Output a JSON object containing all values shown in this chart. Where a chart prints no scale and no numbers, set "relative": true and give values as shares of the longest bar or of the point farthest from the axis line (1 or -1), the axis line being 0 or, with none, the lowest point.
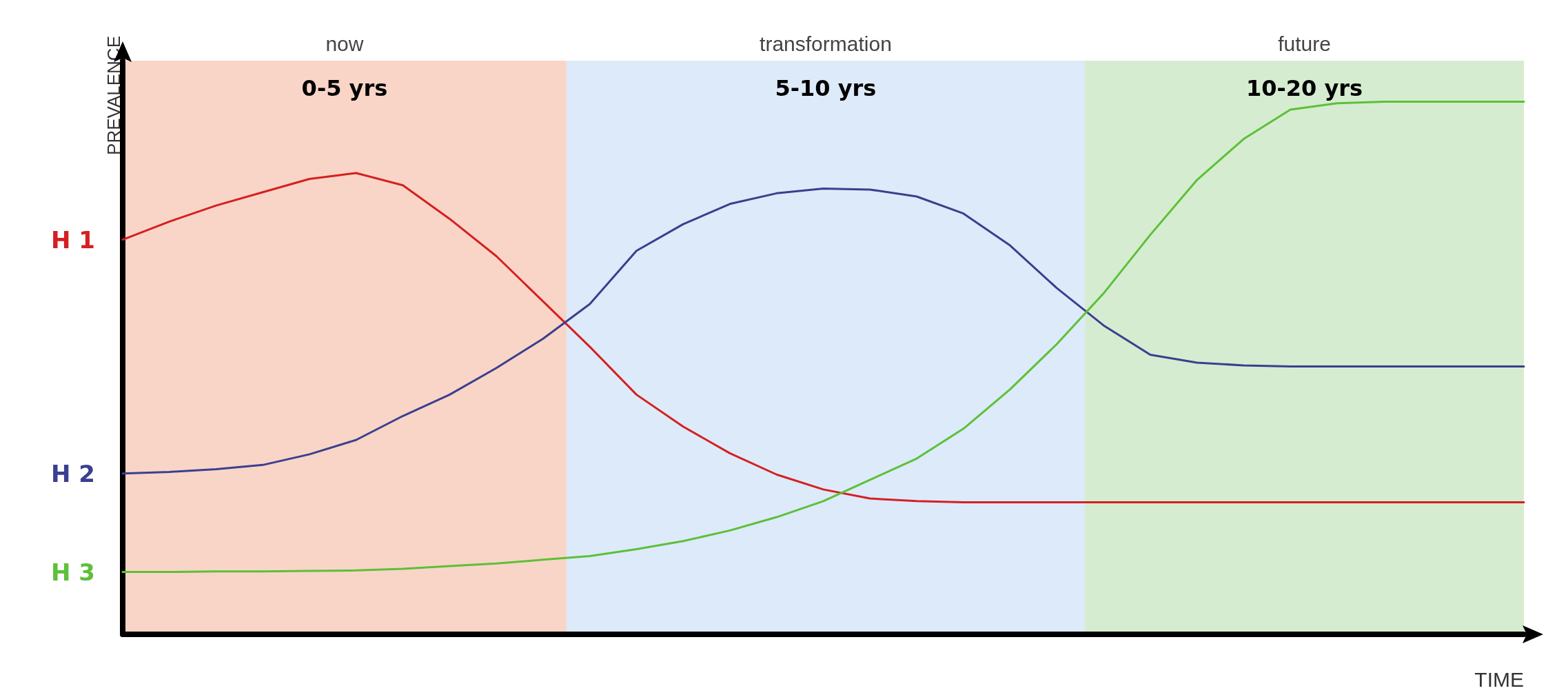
{
  "chart_data": {
    "type": "line",
    "relative": true,
    "xlabel": "TIME",
    "ylabel": "PREVALENCE",
    "grid": false,
    "legend": false,
    "marker": "none",
    "line_style": "solid",
    "categories": [
      null,
      null,
      null,
      null,
      null,
      null,
      null,
      null,
      null,
      null,
      null,
      null,
      null,
      null,
      null,
      null,
      null,
      null,
      null,
      null,
      null,
      null,
      null,
      null,
      null,
      null,
      null,
      null,
      null,
      null,
      null
    ],
    "annotations": [
      "now",
      "transformation",
      "future",
      "0-5 yrs",
      "5-10 yrs",
      "10-20 yrs"
    ],
    "series": [
      {
        "name": "H 1",
        "color": "#d42020",
        "values": [
          0.741,
          0.775,
          0.805,
          0.83,
          0.855,
          0.866,
          0.843,
          0.78,
          0.71,
          0.625,
          0.54,
          0.45,
          0.39,
          0.34,
          0.3,
          0.272,
          0.255,
          0.25,
          0.248,
          0.248,
          0.248,
          0.248,
          0.248,
          0.248,
          0.248,
          0.248,
          0.248,
          0.248,
          0.248,
          0.248,
          0.248
        ]
      },
      {
        "name": "H 2",
        "color": "#3a3f8f",
        "values": [
          0.302,
          0.305,
          0.31,
          0.318,
          0.338,
          0.365,
          0.41,
          0.45,
          0.5,
          0.555,
          0.62,
          0.72,
          0.77,
          0.808,
          0.828,
          0.837,
          0.835,
          0.822,
          0.79,
          0.73,
          0.65,
          0.58,
          0.525,
          0.51,
          0.505,
          0.503,
          0.503,
          0.503,
          0.503,
          0.503,
          0.503
        ]
      },
      {
        "name": "H 3",
        "color": "#5cc038",
        "values": [
          0.117,
          0.117,
          0.118,
          0.118,
          0.119,
          0.12,
          0.123,
          0.128,
          0.133,
          0.14,
          0.147,
          0.16,
          0.175,
          0.195,
          0.22,
          0.25,
          0.29,
          0.33,
          0.386,
          0.46,
          0.545,
          0.64,
          0.75,
          0.853,
          0.93,
          0.985,
          0.997,
          1.0,
          1.0,
          1.0,
          1.0
        ]
      }
    ]
  }
}
